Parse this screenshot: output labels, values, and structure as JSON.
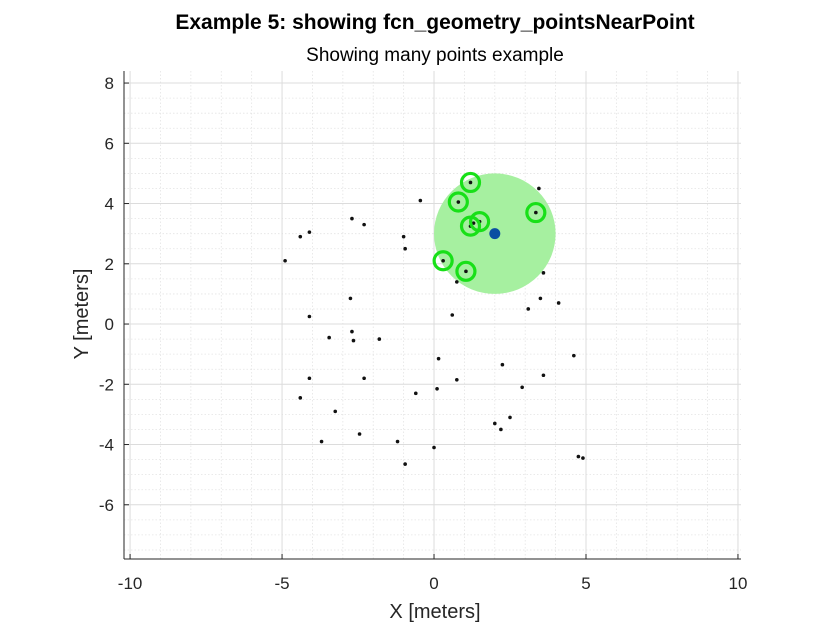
{
  "chart_data": {
    "type": "scatter",
    "title": "Example 5: showing fcn_geometry_pointsNearPoint",
    "subtitle": "Showing many points example",
    "xlabel": "X [meters]",
    "ylabel": "Y [meters]",
    "xlim": [
      -10.2,
      10.1
    ],
    "ylim": [
      -7.8,
      8.4
    ],
    "xticks": [
      -10,
      -5,
      0,
      5,
      10
    ],
    "yticks": [
      -6,
      -4,
      -2,
      0,
      2,
      4,
      6,
      8
    ],
    "grid": true,
    "minor_grid": true,
    "query_point": {
      "x": 2.0,
      "y": 3.0,
      "color": "#0b4ea2"
    },
    "search_radius": 2.0,
    "radius_fill_color": "#a6f0a0",
    "near_marker_color": "#18e018",
    "point_color": "#111111",
    "points": [
      {
        "x": -4.9,
        "y": 2.1
      },
      {
        "x": -4.4,
        "y": 2.9
      },
      {
        "x": -4.1,
        "y": 3.05
      },
      {
        "x": -2.7,
        "y": 3.5
      },
      {
        "x": -2.3,
        "y": 3.3
      },
      {
        "x": -1.0,
        "y": 2.9
      },
      {
        "x": -0.95,
        "y": 2.5
      },
      {
        "x": -0.45,
        "y": 4.1
      },
      {
        "x": -4.1,
        "y": 0.25
      },
      {
        "x": -3.45,
        "y": -0.45
      },
      {
        "x": -2.75,
        "y": 0.85
      },
      {
        "x": -2.7,
        "y": -0.25
      },
      {
        "x": -2.65,
        "y": -0.55
      },
      {
        "x": -1.8,
        "y": -0.5
      },
      {
        "x": -4.1,
        "y": -1.8
      },
      {
        "x": -4.4,
        "y": -2.45
      },
      {
        "x": -3.25,
        "y": -2.9
      },
      {
        "x": -2.3,
        "y": -1.8
      },
      {
        "x": -0.6,
        "y": -2.3
      },
      {
        "x": 0.1,
        "y": -2.15
      },
      {
        "x": 0.75,
        "y": -1.85
      },
      {
        "x": 0.15,
        "y": -1.15
      },
      {
        "x": 0.6,
        "y": 0.3
      },
      {
        "x": 0.75,
        "y": 1.4
      },
      {
        "x": 2.25,
        "y": -1.35
      },
      {
        "x": 2.9,
        "y": -2.1
      },
      {
        "x": 3.6,
        "y": -1.7
      },
      {
        "x": 4.6,
        "y": -1.05
      },
      {
        "x": 3.1,
        "y": 0.5
      },
      {
        "x": 3.5,
        "y": 0.85
      },
      {
        "x": 4.1,
        "y": 0.7
      },
      {
        "x": 3.6,
        "y": 1.7
      },
      {
        "x": 3.45,
        "y": 4.5
      },
      {
        "x": -3.7,
        "y": -3.9
      },
      {
        "x": -2.45,
        "y": -3.65
      },
      {
        "x": -1.2,
        "y": -3.9
      },
      {
        "x": -0.95,
        "y": -4.65
      },
      {
        "x": 0.0,
        "y": -4.1
      },
      {
        "x": 2.0,
        "y": -3.3
      },
      {
        "x": 2.2,
        "y": -3.5
      },
      {
        "x": 2.5,
        "y": -3.1
      },
      {
        "x": 4.75,
        "y": -4.4
      },
      {
        "x": 4.9,
        "y": -4.45
      },
      {
        "x": 1.2,
        "y": 4.7
      },
      {
        "x": 0.8,
        "y": 4.05
      },
      {
        "x": 1.2,
        "y": 3.25
      },
      {
        "x": 1.5,
        "y": 3.4
      },
      {
        "x": 1.3,
        "y": 3.35
      },
      {
        "x": 3.35,
        "y": 3.7
      },
      {
        "x": 0.3,
        "y": 2.1
      },
      {
        "x": 1.05,
        "y": 1.75
      }
    ],
    "near_points": [
      {
        "x": 1.2,
        "y": 4.7
      },
      {
        "x": 0.8,
        "y": 4.05
      },
      {
        "x": 1.2,
        "y": 3.25
      },
      {
        "x": 1.5,
        "y": 3.4
      },
      {
        "x": 3.35,
        "y": 3.7
      },
      {
        "x": 0.3,
        "y": 2.1
      },
      {
        "x": 1.05,
        "y": 1.75
      }
    ]
  }
}
